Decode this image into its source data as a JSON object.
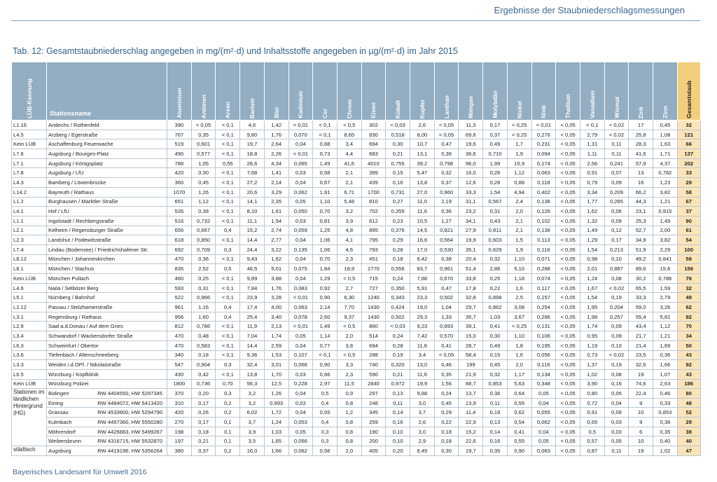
{
  "header": {
    "section": "Ergebnisse der Staubniederschlagsmessungen"
  },
  "title": "Tab. 12: Gesamtstaubniederschlag angegeben in mg/(m²·d) und Inhaltsstoffe angegeben in µg/(m²·d) im Jahr 2015",
  "table": {
    "columns": [
      "LÜB-Kennung",
      "Stationsname",
      "Aluminium",
      "Antimon",
      "Arsen",
      "Barium",
      "Blei",
      "Kadmium",
      "Cer",
      "Chrom",
      "Eisen",
      "Kobalt",
      "Kupfer",
      "Lanthan",
      "Mangan",
      "Molybdän",
      "Nickel",
      "Niob",
      "Thallium",
      "Vanadium",
      "Wismut",
      "Zink",
      "Zinn",
      "Gesamtstaub"
    ],
    "rows": [
      [
        "L1.16",
        "Andechs / Rothenfeld",
        "390",
        "< 0,05",
        "< 0,1",
        "4,6",
        "1,42",
        "< 0,01",
        "< 0,1",
        "< 0,5",
        "302",
        "< 0,03",
        "2,6",
        "< 0,05",
        "11,3",
        "0,17",
        "< 0,25",
        "< 0,01",
        "< 0,05",
        "< 0,1",
        "< 0,02",
        "17",
        "0,45",
        "32"
      ],
      [
        "L4.5",
        "Arzberg / Egerstraße",
        "767",
        "0,35",
        "< 0,1",
        "9,80",
        "1,76",
        "0,070",
        "< 0,1",
        "8,65",
        "830",
        "0,518",
        "8,00",
        "< 0,05",
        "69,6",
        "0,37",
        "< 0,25",
        "0,276",
        "< 0,05",
        "2,79",
        "< 0,02",
        "25,8",
        "1,08",
        "121"
      ],
      [
        "Kein LÜB",
        "Aschaffenburg Feuerwache",
        "519",
        "0,601",
        "< 0,1",
        "19,7",
        "2,64",
        "0,04",
        "0,88",
        "3,4",
        "694",
        "0,30",
        "10,7",
        "0,47",
        "19,6",
        "0,49",
        "1,7",
        "0,231",
        "< 0,05",
        "1,31",
        "0,11",
        "28,3",
        "1,63",
        "66"
      ],
      [
        "L7.6",
        "Augsburg / Bourges-Platz",
        "490",
        "0,577",
        "< 0,1",
        "18,8",
        "2,26",
        "< 0,01",
        "0,73",
        "4,4",
        "683",
        "0,21",
        "13,1",
        "0,38",
        "36,6",
        "0,710",
        "1,9",
        "0,094",
        "< 0,05",
        "1,11",
        "0,11",
        "41,6",
        "1,71",
        "137"
      ],
      [
        "L7.1",
        "Augsburg / Königsplatz",
        "788",
        "1,05",
        "0,55",
        "28,6",
        "4,34",
        "0,065",
        "1,49",
        "41,6",
        "4010",
        "0,755",
        "39,2",
        "0,798",
        "96,0",
        "1,99",
        "15,9",
        "0,174",
        "< 0,05",
        "2,56",
        "0,241",
        "57,9",
        "4,37",
        "202"
      ],
      [
        "L7.8",
        "Augsburg / LfU",
        "420",
        "0,30",
        "< 0,1",
        "7,68",
        "1,41",
        "0,03",
        "0,58",
        "2,1",
        "399",
        "0,15",
        "5,47",
        "0,32",
        "16,0",
        "0,26",
        "1,12",
        "0,063",
        "< 0,05",
        "0,91",
        "0,07",
        "13",
        "0,782",
        "33"
      ],
      [
        "L4.3",
        "Bamberg / Löwenbrücke",
        "360",
        "0,45",
        "< 0,1",
        "27,2",
        "2,14",
        "0,04",
        "0,67",
        "2,1",
        "439",
        "0,16",
        "13,8",
        "0,37",
        "12,6",
        "0,28",
        "0,88",
        "0,118",
        "< 0,05",
        "0,79",
        "0,09",
        "16",
        "1,23",
        "29"
      ],
      [
        "L14.2",
        "Bayreuth / Rathaus",
        "1070",
        "1,26",
        "< 0,1",
        "20,6",
        "3,29",
        "0,062",
        "1,91",
        "6,71",
        "1700",
        "0,731",
        "27,0",
        "0,960",
        "33,3",
        "1,54",
        "4,94",
        "0,402",
        "< 0,05",
        "3,34",
        "0,209",
        "66,2",
        "3,82",
        "58"
      ],
      [
        "L1.2",
        "Burghausen / Marktler Straße",
        "651",
        "1,12",
        "< 0,1",
        "14,1",
        "2,35",
        "0,05",
        "1,10",
        "5,48",
        "810",
        "0,27",
        "11,0",
        "2,19",
        "31,1",
        "0,567",
        "2,4",
        "0,136",
        "< 0,05",
        "1,77",
        "0,265",
        "44,3",
        "1,21",
        "67"
      ],
      [
        "L4.1",
        "Hof / LfU",
        "535",
        "0,38",
        "< 0,1",
        "8,10",
        "1,61",
        "0,050",
        "0,70",
        "3,2",
        "702",
        "0,355",
        "11,6",
        "0,36",
        "23,2",
        "0,31",
        "2,0",
        "0,126",
        "< 0,05",
        "1,62",
        "0,06",
        "23,1",
        "0,915",
        "37"
      ],
      [
        "L1.1",
        "Ingolstadt / Rechbergstraße",
        "516",
        "0,732",
        "< 0,1",
        "11,1",
        "1,54",
        "0,03",
        "0,81",
        "3,9",
        "612",
        "0,23",
        "10,5",
        "1,27",
        "34,1",
        "0,43",
        "2,1",
        "0,102",
        "< 0,05",
        "1,32",
        "0,09",
        "25,3",
        "1,49",
        "90"
      ],
      [
        "L2.1",
        "Kelheim / Regensburger Straße",
        "656",
        "0,667",
        "0,4",
        "15,2",
        "2,74",
        "0,059",
        "1,25",
        "4,8",
        "895",
        "0,376",
        "14,5",
        "0,821",
        "27,9",
        "0,811",
        "2,1",
        "0,136",
        "< 0,05",
        "1,49",
        "0,12",
        "52,7",
        "2,00",
        "61"
      ],
      [
        "L2.3",
        "Landshut / Podewilsstraße",
        "618",
        "0,850",
        "< 0,1",
        "14,4",
        "2,77",
        "0,04",
        "1,06",
        "4,1",
        "795",
        "0,29",
        "16,6",
        "0,564",
        "19,9",
        "0,603",
        "1,5",
        "0,113",
        "< 0,05",
        "1,29",
        "0,17",
        "34,9",
        "3,82",
        "54"
      ],
      [
        "L7.4",
        "Lindau (Bodensee) / Friedrichshafener Str.",
        "692",
        "0,709",
        "0,3",
        "24,4",
        "3,22",
        "0,135",
        "1,06",
        "4,6",
        "793",
        "0,28",
        "17,0",
        "0,530",
        "35,1",
        "0,629",
        "1,9",
        "0,116",
        "< 0,05",
        "1,54",
        "0,213",
        "51,9",
        "2,29",
        "100"
      ],
      [
        "L8.12",
        "München / Johanneskirchen",
        "470",
        "0,36",
        "< 0,1",
        "9,43",
        "1,62",
        "0,04",
        "0,70",
        "2,3",
        "451",
        "0,18",
        "6,42",
        "0,38",
        "20,4",
        "0,32",
        "1,10",
        "0,071",
        "< 0,05",
        "0,98",
        "0,10",
        "49,2",
        "0,841",
        "59"
      ],
      [
        "L8.1",
        "München / Stachus",
        "835",
        "2,52",
        "0,5",
        "48,5",
        "5,01",
        "0,075",
        "1,84",
        "18,9",
        "2770",
        "0,556",
        "83,7",
        "0,961",
        "51,4",
        "2,86",
        "5,10",
        "0,288",
        "< 0,05",
        "2,01",
        "0,887",
        "89,6",
        "15,6",
        "156"
      ],
      [
        "Kein LÜB",
        "München Pullach",
        "460",
        "0,25",
        "< 0,1",
        "9,89",
        "3,88",
        "0,04",
        "1,29",
        "< 0,5",
        "715",
        "0,24",
        "7,88",
        "0,670",
        "33,8",
        "0,25",
        "1,18",
        "0,074",
        "< 0,05",
        "1,24",
        "0,08",
        "30,2",
        "0,786",
        "76"
      ],
      [
        "L4.6",
        "Naila / Selbitzer Berg",
        "593",
        "0,31",
        "< 0,1",
        "7,84",
        "1,76",
        "0,083",
        "0,92",
        "2,7",
        "727",
        "0,350",
        "5,91",
        "0,47",
        "17,8",
        "0,22",
        "1,6",
        "0,117",
        "< 0,05",
        "1,67",
        "< 0,02",
        "65,5",
        "1,59",
        "32"
      ],
      [
        "L5.1",
        "Nürnberg / Bahnhof",
        "522",
        "0,966",
        "< 0,1",
        "23,9",
        "3,28",
        "< 0,01",
        "0,90",
        "6,30",
        "1240",
        "0,343",
        "23,3",
        "0,502",
        "32,8",
        "0,898",
        "2,5",
        "0,157",
        "< 0,05",
        "1,54",
        "0,19",
        "33,3",
        "2,79",
        "49"
      ],
      [
        "L2.12",
        "Passau / Stelzhamerstraße",
        "961",
        "1,16",
        "0,4",
        "17,4",
        "4,00",
        "0,063",
        "2,14",
        "7,70",
        "1430",
        "0,424",
        "19,0",
        "1,04",
        "29,7",
        "0,862",
        "3,08",
        "0,254",
        "< 0,05",
        "1,95",
        "0,204",
        "59,0",
        "3,26",
        "62"
      ],
      [
        "L3.1",
        "Regensburg / Rathaus",
        "956",
        "1,60",
        "0,4",
        "25,4",
        "3,40",
        "0,078",
        "2,60",
        "9,37",
        "1430",
        "0,502",
        "29,3",
        "1,33",
        "35,7",
        "1,03",
        "3,67",
        "0,286",
        "< 0,05",
        "1,98",
        "0,257",
        "55,4",
        "5,81",
        "82"
      ],
      [
        "L2.9",
        "Saal a.d.Donau / Auf dem Gries",
        "812",
        "0,786",
        "< 0,1",
        "11,9",
        "2,13",
        "< 0,01",
        "1,49",
        "< 0,5",
        "860",
        "< 0,03",
        "9,23",
        "0,893",
        "39,1",
        "0,41",
        "< 0,25",
        "0,131",
        "< 0,05",
        "1,74",
        "0,09",
        "43,4",
        "1,12",
        "70"
      ],
      [
        "L3.4",
        "Schwandorf / Wackersdorfer Straße",
        "470",
        "0,48",
        "< 0,1",
        "7,04",
        "1,74",
        "0,05",
        "1,14",
        "2,0",
        "514",
        "0,24",
        "7,42",
        "0,570",
        "15,0",
        "0,30",
        "1,10",
        "0,106",
        "< 0,05",
        "0,95",
        "0,09",
        "21,7",
        "1,21",
        "34"
      ],
      [
        "L6.3",
        "Schweinfurt / Obertor",
        "470",
        "0,583",
        "< 0,1",
        "14,4",
        "2,59",
        "0,04",
        "0,77",
        "3,8",
        "694",
        "0,28",
        "11,6",
        "0,41",
        "28,7",
        "0,49",
        "1,8",
        "0,195",
        "< 0,05",
        "1,19",
        "0,10",
        "21,4",
        "1,69",
        "50"
      ],
      [
        "L3.6",
        "Tiefenbach / Altenschneeberg",
        "340",
        "0,18",
        "< 0,1",
        "9,36",
        "1,53",
        "0,107",
        "< 0,1",
        "< 0,5",
        "288",
        "0,19",
        "3,4",
        "< 0,05",
        "58,4",
        "0,15",
        "1,6",
        "0,056",
        "< 0,05",
        "0,73",
        "< 0,02",
        "23,5",
        "0,36",
        "43"
      ],
      [
        "L3.3",
        "Weiden i.d.OPf. / Nikolaistraße",
        "547",
        "0,904",
        "0,3",
        "32,4",
        "3,01",
        "0,068",
        "0,90",
        "3,3",
        "740",
        "0,320",
        "13,0",
        "0,46",
        "199",
        "0,45",
        "2,0",
        "0,116",
        "< 0,05",
        "1,37",
        "0,19",
        "32,6",
        "1,66",
        "92"
      ],
      [
        "L6.5",
        "Würzburg / Kopfklinik",
        "430",
        "0,42",
        "< 0,1",
        "13,8",
        "1,70",
        "0,03",
        "0,66",
        "2,3",
        "590",
        "0,21",
        "11,6",
        "0,35",
        "21,9",
        "0,32",
        "1,17",
        "0,134",
        "< 0,05",
        "1,02",
        "0,08",
        "19",
        "1,07",
        "43"
      ],
      [
        "Kein LÜB",
        "Würzburg Polizei",
        "1800",
        "0,736",
        "0,70",
        "56,3",
        "12,5",
        "0,228",
        "2,97",
        "11,5",
        "2840",
        "0,972",
        "19,9",
        "1,56",
        "88,7",
        "0,853",
        "5,63",
        "0,348",
        "< 0,05",
        "3,90",
        "0,16",
        "74,6",
        "2,63",
        "186"
      ]
    ],
    "background_group": {
      "label": "Stationen im ländlichen Hintergrund (HG)",
      "rows": [
        [
          "Bidingen",
          "RW 4404550, HW 5297345",
          "370",
          "0,20",
          "0,3",
          "3,2",
          "1,26",
          "0,04",
          "0,5",
          "0,9",
          "297",
          "0,13",
          "9,88",
          "0,24",
          "13,7",
          "0,36",
          "0,64",
          "0,05",
          "< 0,05",
          "0,80",
          "0,05",
          "22,4",
          "0,46",
          "80"
        ],
        [
          "Eining",
          "RW 4484072, HW 5413420",
          "310",
          "0,17",
          "0,2",
          "3,2",
          "0,993",
          "0,03",
          "0,4",
          "0,8",
          "248",
          "0,11",
          "3,0",
          "0,45",
          "13,9",
          "0,11",
          "0,55",
          "0,04",
          "< 0,05",
          "0,72",
          "0,04",
          "9",
          "0,33",
          "48"
        ],
        [
          "Grassau",
          "RW 4533600, HW 5294790",
          "420",
          "0,26",
          "0,2",
          "6,02",
          "1,72",
          "0,04",
          "0,55",
          "1,2",
          "345",
          "0,14",
          "3,7",
          "0,29",
          "11,4",
          "0,19",
          "0,62",
          "0,055",
          "< 0,05",
          "0,91",
          "0,09",
          "10",
          "0,853",
          "52"
        ],
        [
          "Kulmbach",
          "RW 4457360, HW 5550280",
          "270",
          "0,17",
          "0,1",
          "3,7",
          "1,24",
          "0,053",
          "0,4",
          "0,8",
          "259",
          "0,16",
          "2,6",
          "0,22",
          "22,9",
          "0,13",
          "0,54",
          "0,062",
          "< 0,05",
          "0,65",
          "0,03",
          "9",
          "0,36",
          "29"
        ],
        [
          "Möhrendorf",
          "RW 4426883, HW 5499267",
          "198",
          "0,18",
          "0,1",
          "3,9",
          "1,03",
          "0,05",
          "0,3",
          "0,8",
          "190",
          "0,10",
          "3,0",
          "0,18",
          "15,2",
          "0,14",
          "0,41",
          "0,04",
          "< 0,05",
          "0,5",
          "0,03",
          "6",
          "0,35",
          "38"
        ],
        [
          "Weibersbrunn",
          "RW 4316715, HW 5532870",
          "197",
          "0,21",
          "0,1",
          "3,5",
          "1,65",
          "0,056",
          "0,3",
          "0,8",
          "200",
          "0,10",
          "2,9",
          "0,18",
          "22,6",
          "0,16",
          "0,55",
          "0,05",
          "< 0,05",
          "0,57",
          "0,05",
          "10",
          "0,40",
          "40"
        ]
      ]
    },
    "urban_group": {
      "label": "städtisch",
      "rows": [
        [
          "Augsburg",
          "RW 4419196, HW 5356264",
          "380",
          "0,37",
          "0,2",
          "16,0",
          "1,66",
          "0,062",
          "0,56",
          "2,0",
          "405",
          "0,20",
          "8,49",
          "0,30",
          "19,7",
          "0,35",
          "0,90",
          "0,063",
          "< 0,05",
          "0,87",
          "0,11",
          "19",
          "1,02",
          "47"
        ]
      ]
    }
  },
  "footer": "Bayerisches Landesamt für Umwelt 2016"
}
